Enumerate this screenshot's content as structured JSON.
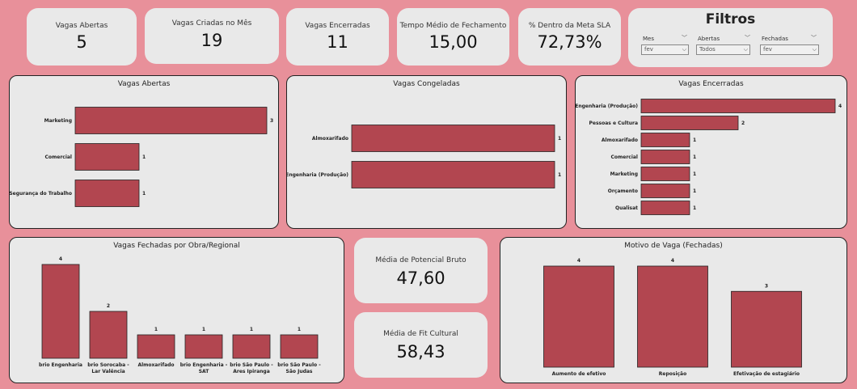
{
  "kpis": [
    {
      "label": "Vagas Abertas",
      "value": "5"
    },
    {
      "label": "Vagas Criadas no Mês",
      "value": "19"
    },
    {
      "label": "Vagas Encerradas",
      "value": "11"
    },
    {
      "label": "Tempo Médio de Fechamento",
      "value": "15,00"
    },
    {
      "label": "% Dentro da Meta SLA",
      "value": "72,73%"
    }
  ],
  "filters": {
    "title": "Filtros",
    "items": [
      {
        "label": "Mes",
        "value": "fev"
      },
      {
        "label": "Abertas",
        "value": "Todos"
      },
      {
        "label": "Fechadas",
        "value": "fev"
      }
    ]
  },
  "metrics": [
    {
      "label": "Média de Potencial Bruto",
      "value": "47,60"
    },
    {
      "label": "Média de Fit Cultural",
      "value": "58,43"
    }
  ],
  "chart_data": [
    {
      "type": "bar",
      "orientation": "horizontal",
      "title": "Vagas Abertas",
      "categories": [
        "Marketing",
        "Comercial",
        "Segurança do Trabalho"
      ],
      "values": [
        3,
        1,
        1
      ]
    },
    {
      "type": "bar",
      "orientation": "horizontal",
      "title": "Vagas Congeladas",
      "categories": [
        "Almoxarifado",
        "Engenharia (Produção)"
      ],
      "values": [
        1,
        1
      ]
    },
    {
      "type": "bar",
      "orientation": "horizontal",
      "title": "Vagas Encerradas",
      "categories": [
        "Engenharia (Produção)",
        "Pessoas e Cultura",
        "Almoxarifado",
        "Comercial",
        "Marketing",
        "Orçamento",
        "Qualisat"
      ],
      "values": [
        4,
        2,
        1,
        1,
        1,
        1,
        1
      ]
    },
    {
      "type": "bar",
      "orientation": "vertical",
      "title": "Vagas Fechadas por Obra/Regional",
      "categories": [
        "brio Engenharia",
        "brio Sorocaba - Lar Valência",
        "Almoxarifado",
        "brio Engenharia - SAT",
        "brio São Paulo - Ares Ipiranga",
        "brio São Paulo - São Judas"
      ],
      "values": [
        4,
        2,
        1,
        1,
        1,
        1
      ]
    },
    {
      "type": "bar",
      "orientation": "vertical",
      "title": "Motivo de Vaga (Fechadas)",
      "categories": [
        "Aumento de efetivo",
        "Reposição",
        "Efetivação de estagiário"
      ],
      "values": [
        4,
        4,
        3
      ]
    }
  ]
}
